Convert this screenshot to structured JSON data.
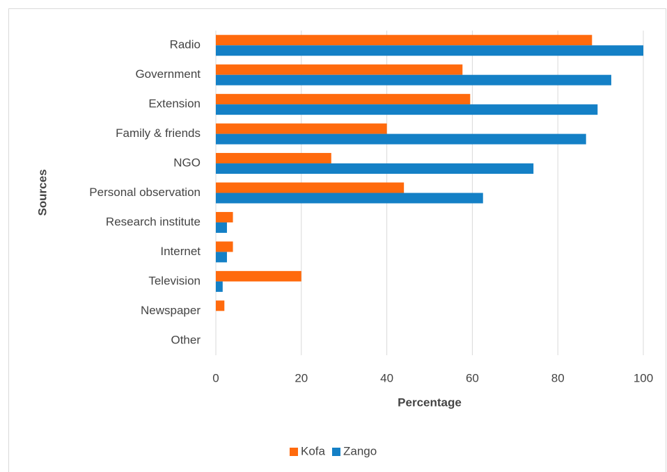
{
  "chart_data": {
    "type": "bar",
    "orientation": "horizontal",
    "categories": [
      "Radio",
      "Government",
      "Extension",
      "Family & friends",
      "NGO",
      "Personal observation",
      "Research institute",
      "Internet",
      "Television",
      "Newspaper",
      "Other"
    ],
    "series": [
      {
        "name": "Kofa",
        "color": "#ff6a0d",
        "values": [
          88,
          57.7,
          59.5,
          40,
          27,
          44,
          4,
          4,
          20,
          2,
          0
        ]
      },
      {
        "name": "Zango",
        "color": "#1480c6",
        "values": [
          100,
          92.5,
          89.3,
          86.6,
          74.3,
          62.5,
          2.6,
          2.6,
          1.6,
          0,
          0
        ]
      }
    ],
    "xlabel": "Percentage",
    "ylabel": "Sources",
    "xlim": [
      0,
      100
    ],
    "xticks": [
      0,
      20,
      40,
      60,
      80,
      100
    ],
    "grid": true,
    "legend": "bottom"
  }
}
